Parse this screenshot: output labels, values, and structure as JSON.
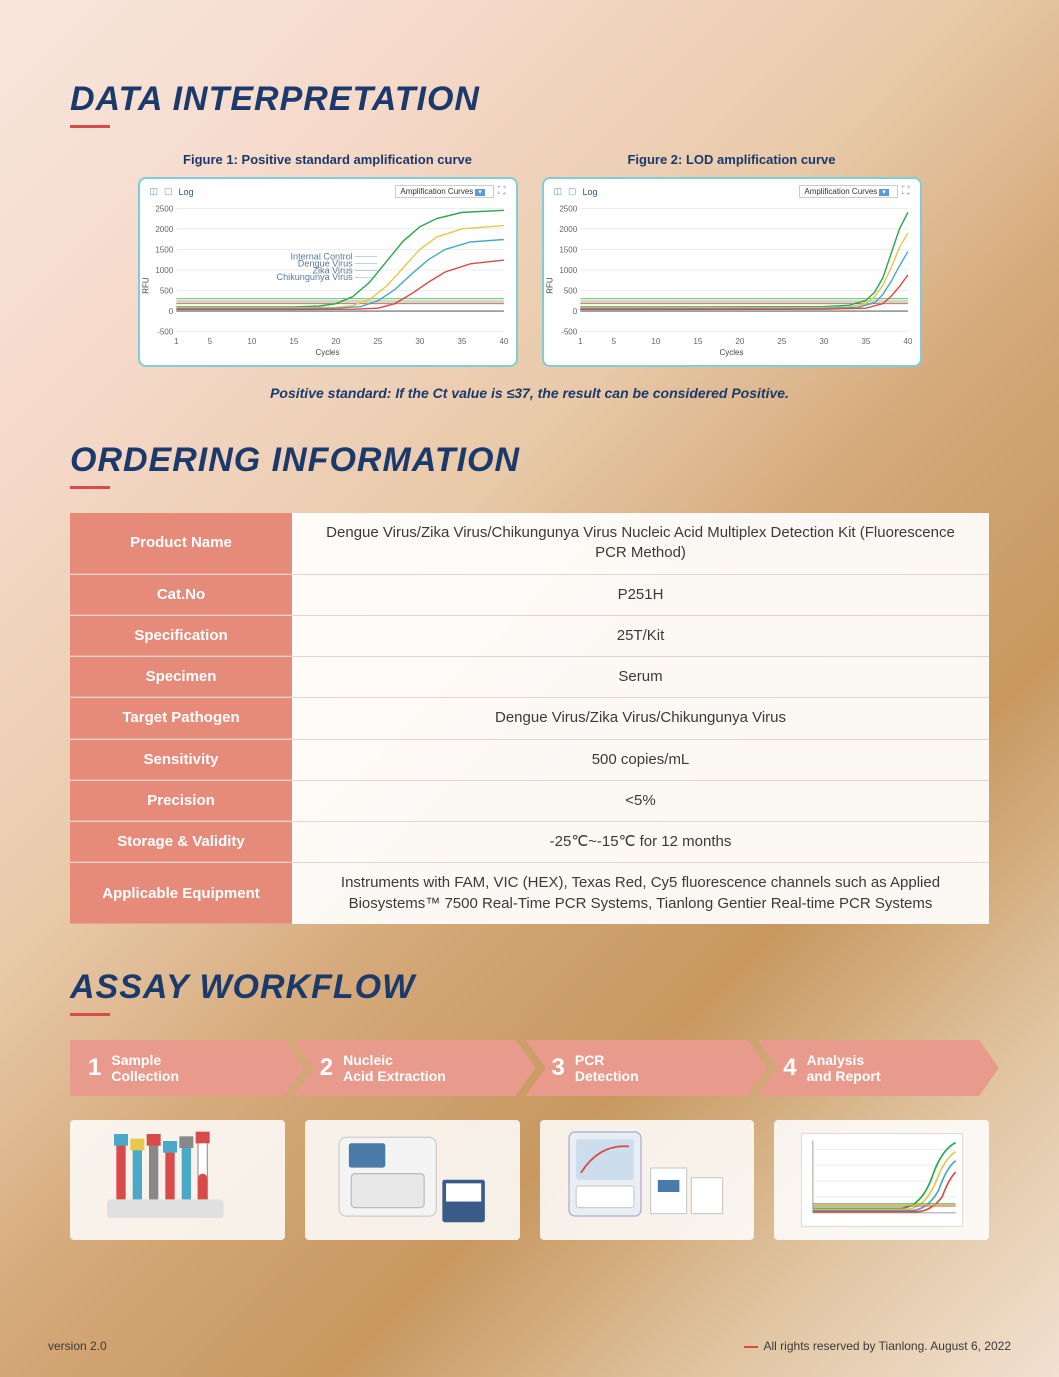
{
  "sections": {
    "data_interp_title": "DATA INTERPRETATION",
    "ordering_title": "ORDERING INFORMATION",
    "workflow_title": "ASSAY WORKFLOW"
  },
  "figures": {
    "fig1_caption": "Figure 1: Positive standard amplification curve",
    "fig2_caption": "Figure 2: LOD amplification curve",
    "chart_header_log": "Log",
    "chart_header_dropdown": "Amplification Curves",
    "y_axis_label": "RFU",
    "x_axis_label": "Cycles",
    "y_ticks": [
      "-500",
      "0",
      "500",
      "1000",
      "1500",
      "2000",
      "2500"
    ],
    "x_ticks": [
      "1",
      "5",
      "10",
      "15",
      "20",
      "25",
      "30",
      "35",
      "40"
    ],
    "ylim": [
      -500,
      2500
    ],
    "xlim": [
      1,
      40
    ],
    "grid_color": "#d8d8d8",
    "background_color": "#ffffff",
    "fig1_series": [
      {
        "name": "Internal Control",
        "color": "#2aa84a",
        "label_x": 22,
        "label_y": 1250,
        "data": [
          [
            1,
            100
          ],
          [
            5,
            100
          ],
          [
            10,
            100
          ],
          [
            15,
            100
          ],
          [
            18,
            120
          ],
          [
            20,
            180
          ],
          [
            22,
            350
          ],
          [
            24,
            700
          ],
          [
            26,
            1200
          ],
          [
            28,
            1700
          ],
          [
            30,
            2050
          ],
          [
            32,
            2250
          ],
          [
            35,
            2400
          ],
          [
            40,
            2450
          ]
        ]
      },
      {
        "name": "Dengue Virus",
        "color": "#e6c84a",
        "label_x": 22,
        "label_y": 1080,
        "data": [
          [
            1,
            80
          ],
          [
            5,
            80
          ],
          [
            10,
            80
          ],
          [
            15,
            80
          ],
          [
            20,
            90
          ],
          [
            22,
            130
          ],
          [
            24,
            280
          ],
          [
            26,
            600
          ],
          [
            28,
            1050
          ],
          [
            30,
            1500
          ],
          [
            32,
            1800
          ],
          [
            35,
            2000
          ],
          [
            40,
            2080
          ]
        ]
      },
      {
        "name": "Zika Virus",
        "color": "#4aa8c8",
        "label_x": 22,
        "label_y": 910,
        "data": [
          [
            1,
            60
          ],
          [
            5,
            60
          ],
          [
            10,
            60
          ],
          [
            15,
            60
          ],
          [
            20,
            70
          ],
          [
            23,
            110
          ],
          [
            25,
            250
          ],
          [
            27,
            520
          ],
          [
            29,
            900
          ],
          [
            31,
            1250
          ],
          [
            33,
            1500
          ],
          [
            36,
            1680
          ],
          [
            40,
            1740
          ]
        ]
      },
      {
        "name": "Chikungunya Virus",
        "color": "#d84b4b",
        "label_x": 22,
        "label_y": 750,
        "data": [
          [
            1,
            40
          ],
          [
            5,
            40
          ],
          [
            10,
            40
          ],
          [
            15,
            40
          ],
          [
            22,
            45
          ],
          [
            25,
            70
          ],
          [
            27,
            180
          ],
          [
            29,
            420
          ],
          [
            31,
            700
          ],
          [
            33,
            950
          ],
          [
            36,
            1150
          ],
          [
            40,
            1240
          ]
        ]
      }
    ],
    "baseline_lines": [
      {
        "color": "#2aa84a",
        "y": 300
      },
      {
        "color": "#e6c84a",
        "y": 260
      },
      {
        "color": "#4aa8c8",
        "y": 220
      },
      {
        "color": "#d84b4b",
        "y": 180
      }
    ],
    "fig2_series": [
      {
        "color": "#2aa84a",
        "data": [
          [
            1,
            100
          ],
          [
            5,
            100
          ],
          [
            10,
            100
          ],
          [
            15,
            100
          ],
          [
            30,
            110
          ],
          [
            33,
            140
          ],
          [
            35,
            260
          ],
          [
            36,
            450
          ],
          [
            37,
            800
          ],
          [
            38,
            1400
          ],
          [
            39,
            2000
          ],
          [
            40,
            2400
          ]
        ]
      },
      {
        "color": "#e6c84a",
        "data": [
          [
            1,
            80
          ],
          [
            5,
            80
          ],
          [
            10,
            80
          ],
          [
            30,
            85
          ],
          [
            33,
            100
          ],
          [
            35,
            180
          ],
          [
            36,
            340
          ],
          [
            37,
            620
          ],
          [
            38,
            1050
          ],
          [
            39,
            1550
          ],
          [
            40,
            1900
          ]
        ]
      },
      {
        "color": "#4aa8c8",
        "data": [
          [
            1,
            60
          ],
          [
            5,
            60
          ],
          [
            30,
            65
          ],
          [
            34,
            90
          ],
          [
            36,
            200
          ],
          [
            37,
            400
          ],
          [
            38,
            720
          ],
          [
            39,
            1100
          ],
          [
            40,
            1450
          ]
        ]
      },
      {
        "color": "#d84b4b",
        "data": [
          [
            1,
            40
          ],
          [
            5,
            40
          ],
          [
            30,
            45
          ],
          [
            35,
            70
          ],
          [
            37,
            180
          ],
          [
            38,
            360
          ],
          [
            39,
            600
          ],
          [
            40,
            880
          ]
        ]
      }
    ]
  },
  "positive_note": "Positive standard: If the Ct value is ≤37, the result can be considered Positive.",
  "ordering": [
    {
      "label": "Product Name",
      "value": "Dengue Virus/Zika Virus/Chikungunya Virus Nucleic Acid Multiplex Detection Kit (Fluorescence PCR Method)"
    },
    {
      "label": "Cat.No",
      "value": "P251H"
    },
    {
      "label": "Specification",
      "value": "25T/Kit"
    },
    {
      "label": "Specimen",
      "value": "Serum"
    },
    {
      "label": "Target Pathogen",
      "value": "Dengue Virus/Zika Virus/Chikungunya Virus"
    },
    {
      "label": "Sensitivity",
      "value": "500 copies/mL"
    },
    {
      "label": "Precision",
      "value": "<5%"
    },
    {
      "label": "Storage & Validity",
      "value": "-25℃~-15℃ for 12 months"
    },
    {
      "label": "Applicable Equipment",
      "value": "Instruments with FAM, VIC (HEX), Texas Red, Cy5 fluorescence channels such as Applied Biosystems™ 7500 Real-Time PCR Systems, Tianlong Gentier Real-time PCR Systems"
    }
  ],
  "workflow": [
    {
      "num": "1",
      "text": "Sample Collection"
    },
    {
      "num": "2",
      "text": "Nucleic Acid Extraction"
    },
    {
      "num": "3",
      "text": "PCR Detection"
    },
    {
      "num": "4",
      "text": "Analysis and Report"
    }
  ],
  "footer": {
    "version": "version 2.0",
    "rights": "All rights reserved by Tianlong. August 6, 2022"
  },
  "colors": {
    "title_color": "#1b3a6b",
    "accent_red": "#d84b4b",
    "table_header_bg": "#e68a7a",
    "chevron_bg": "#e89a8c"
  }
}
